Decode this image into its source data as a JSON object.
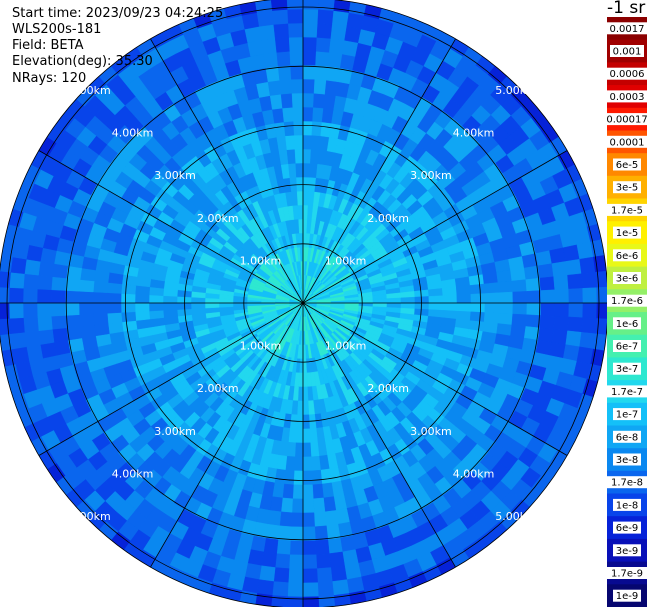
{
  "info": {
    "start_time": "Start time: 2023/09/23 04:24:25",
    "instrument": "WLS200s-181",
    "field": "Field: BETA",
    "elevation": "Elevation(deg): 35.30",
    "nrays": "NRays: 120"
  },
  "unit_label": "-1 sr",
  "chart_data": {
    "type": "heatmap",
    "projection": "polar (PPI)",
    "field": "BETA",
    "elevation_deg": 35.3,
    "n_rays": 120,
    "range_unit": "km",
    "range_max_km": 6.0,
    "range_rings_km": [
      1,
      2,
      3,
      4,
      5
    ],
    "ring_labels": [
      "1.00km",
      "2.00km",
      "3.00km",
      "4.00km",
      "5.00km"
    ],
    "spokes": 12,
    "colorbar": {
      "scale": "log",
      "labels": [
        "0.0017",
        "0.001",
        "0.0006",
        "0.0003",
        "0.00017",
        "0.0001",
        "6e-5",
        "3e-5",
        "1.7e-5",
        "1e-5",
        "6e-6",
        "3e-6",
        "1.7e-6",
        "1e-6",
        "6e-7",
        "3e-7",
        "1.7e-7",
        "1e-7",
        "6e-8",
        "3e-8",
        "1.7e-8",
        "1e-8",
        "6e-9",
        "3e-9",
        "1.7e-9",
        "1e-9"
      ],
      "colors": [
        "#8b0000",
        "#a00000",
        "#c40000",
        "#e00000",
        "#ff1a00",
        "#ff5500",
        "#ff8800",
        "#ffb000",
        "#ffd400",
        "#fff000",
        "#e8f818",
        "#bff040",
        "#94f068",
        "#66f088",
        "#44f0b0",
        "#2ee8d0",
        "#22d8ee",
        "#14c0f8",
        "#10a6f4",
        "#0a88f0",
        "#0a66ee",
        "#0844ea",
        "#0622d8",
        "#0810b8",
        "#080a90",
        "#060670"
      ]
    },
    "typical_values_by_range": [
      {
        "range_km": 0.5,
        "value": "1.7e-7"
      },
      {
        "range_km": 1.5,
        "value": "1e-7"
      },
      {
        "range_km": 2.5,
        "value": "6e-8"
      },
      {
        "range_km": 3.5,
        "value": "3e-8"
      },
      {
        "range_km": 4.5,
        "value": "1.7e-8"
      },
      {
        "range_km": 5.5,
        "value": "1e-8"
      }
    ]
  }
}
